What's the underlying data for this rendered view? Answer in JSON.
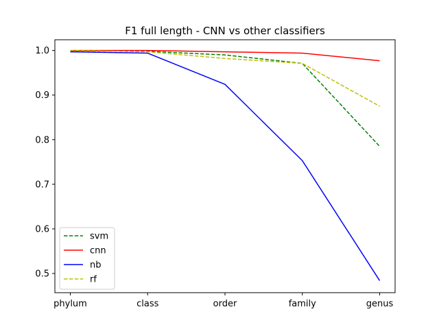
{
  "chart_data": {
    "type": "line",
    "title": "F1 full length - CNN vs other classifiers",
    "xlabel": "",
    "ylabel": "",
    "categories": [
      "phylum",
      "class",
      "order",
      "family",
      "genus"
    ],
    "ylim": [
      0.457,
      1.024
    ],
    "yticks": [
      0.5,
      0.6,
      0.7,
      0.8,
      0.9,
      1.0
    ],
    "ytick_labels": [
      "0.5",
      "0.6",
      "0.7",
      "0.8",
      "0.9",
      "1.0"
    ],
    "grid": false,
    "legend_position": "lower-left",
    "series": [
      {
        "name": "svm",
        "values": [
          0.999,
          0.998,
          0.99,
          0.971,
          0.785
        ],
        "color": "#008000",
        "dash": "dashed"
      },
      {
        "name": "cnn",
        "values": [
          1.0,
          1.0,
          0.997,
          0.994,
          0.977
        ],
        "color": "#ff0000",
        "dash": "solid"
      },
      {
        "name": "nb",
        "values": [
          0.997,
          0.994,
          0.924,
          0.753,
          0.484
        ],
        "color": "#0000ff",
        "dash": "solid"
      },
      {
        "name": "rf",
        "values": [
          1.0,
          0.997,
          0.982,
          0.971,
          0.875
        ],
        "color": "#bfbf00",
        "dash": "dashed"
      }
    ]
  }
}
